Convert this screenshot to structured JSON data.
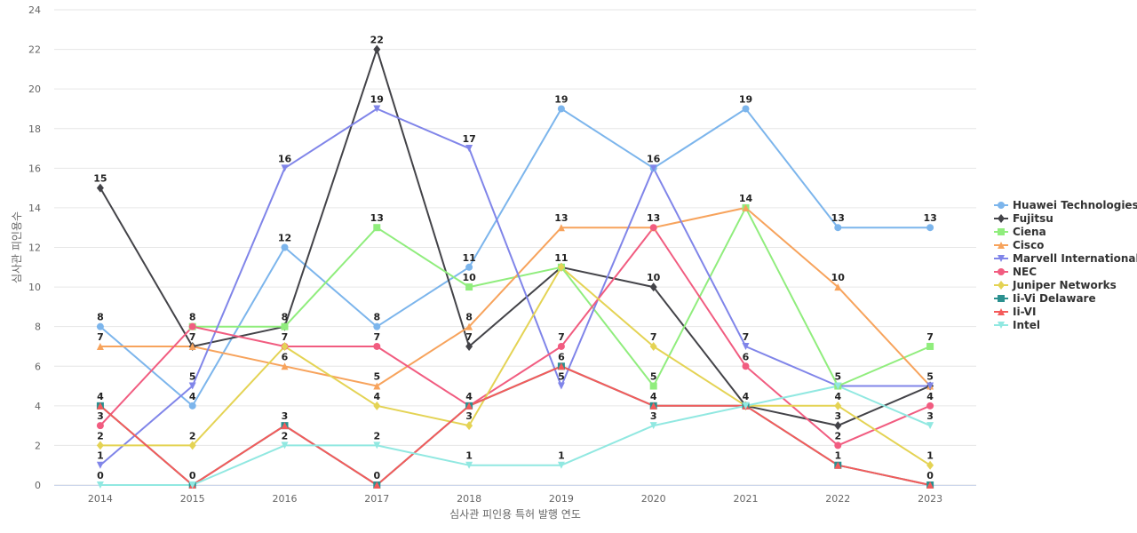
{
  "chart_data": {
    "type": "line",
    "title": "",
    "xlabel": "심사관 피인용 특허 발행 연도",
    "ylabel": "심사관 피인용수",
    "x": [
      "2014",
      "2015",
      "2016",
      "2017",
      "2018",
      "2019",
      "2020",
      "2021",
      "2022",
      "2023"
    ],
    "ylim": [
      0,
      24
    ],
    "yticks": [
      0,
      2,
      4,
      6,
      8,
      10,
      12,
      14,
      16,
      18,
      20,
      22,
      24
    ],
    "grid": true,
    "legend_position": "right",
    "series": [
      {
        "name": "Huawei Technologies",
        "color": "#7cb5ec",
        "marker": "circle",
        "values": [
          8,
          4,
          12,
          8,
          11,
          19,
          16,
          19,
          13,
          13
        ]
      },
      {
        "name": "Fujitsu",
        "color": "#434348",
        "marker": "diamond",
        "values": [
          15,
          7,
          8,
          22,
          7,
          11,
          10,
          4,
          3,
          5
        ]
      },
      {
        "name": "Ciena",
        "color": "#90ed7d",
        "marker": "square",
        "values": [
          null,
          8,
          8,
          13,
          10,
          11,
          5,
          14,
          5,
          7
        ]
      },
      {
        "name": "Cisco",
        "color": "#f7a35c",
        "marker": "triangle",
        "values": [
          7,
          7,
          6,
          5,
          8,
          13,
          13,
          14,
          10,
          5
        ]
      },
      {
        "name": "Marvell International",
        "color": "#8085e9",
        "marker": "triangle-down",
        "values": [
          1,
          5,
          16,
          19,
          17,
          5,
          16,
          7,
          5,
          5
        ]
      },
      {
        "name": "NEC",
        "color": "#f15c80",
        "marker": "circle",
        "values": [
          3,
          8,
          7,
          7,
          4,
          7,
          13,
          6,
          2,
          4
        ]
      },
      {
        "name": "Juniper Networks",
        "color": "#e4d354",
        "marker": "diamond",
        "values": [
          2,
          2,
          7,
          4,
          3,
          11,
          7,
          4,
          4,
          1
        ]
      },
      {
        "name": "Ii-Vi Delaware",
        "color": "#2b908f",
        "marker": "square",
        "values": [
          4,
          0,
          3,
          0,
          4,
          6,
          4,
          4,
          1,
          0
        ]
      },
      {
        "name": "Ii-VI",
        "color": "#f45b5b",
        "marker": "triangle",
        "values": [
          4,
          0,
          3,
          0,
          4,
          6,
          4,
          4,
          1,
          0
        ]
      },
      {
        "name": "Intel",
        "color": "#91e8e1",
        "marker": "triangle-down",
        "values": [
          0,
          0,
          2,
          2,
          1,
          1,
          3,
          4,
          5,
          3
        ]
      }
    ],
    "data_labels": [
      {
        "x": "2014",
        "value": 15
      },
      {
        "x": "2014",
        "value": 8
      },
      {
        "x": "2014",
        "value": 7
      },
      {
        "x": "2014",
        "value": 4
      },
      {
        "x": "2014",
        "value": 3
      },
      {
        "x": "2014",
        "value": 2
      },
      {
        "x": "2014",
        "value": 1
      },
      {
        "x": "2014",
        "value": 0
      },
      {
        "x": "2015",
        "value": 8
      },
      {
        "x": "2015",
        "value": 7
      },
      {
        "x": "2015",
        "value": 5
      },
      {
        "x": "2015",
        "value": 4
      },
      {
        "x": "2015",
        "value": 2
      },
      {
        "x": "2015",
        "value": 0
      },
      {
        "x": "2016",
        "value": 16
      },
      {
        "x": "2016",
        "value": 12
      },
      {
        "x": "2016",
        "value": 8
      },
      {
        "x": "2016",
        "value": 7
      },
      {
        "x": "2016",
        "value": 6
      },
      {
        "x": "2016",
        "value": 3
      },
      {
        "x": "2016",
        "value": 2
      },
      {
        "x": "2017",
        "value": 22
      },
      {
        "x": "2017",
        "value": 19
      },
      {
        "x": "2017",
        "value": 13
      },
      {
        "x": "2017",
        "value": 8
      },
      {
        "x": "2017",
        "value": 7
      },
      {
        "x": "2017",
        "value": 5
      },
      {
        "x": "2017",
        "value": 4
      },
      {
        "x": "2017",
        "value": 2
      },
      {
        "x": "2017",
        "value": 0
      },
      {
        "x": "2018",
        "value": 17
      },
      {
        "x": "2018",
        "value": 11
      },
      {
        "x": "2018",
        "value": 10
      },
      {
        "x": "2018",
        "value": 8
      },
      {
        "x": "2018",
        "value": 7
      },
      {
        "x": "2018",
        "value": 4
      },
      {
        "x": "2018",
        "value": 3
      },
      {
        "x": "2018",
        "value": 1
      },
      {
        "x": "2019",
        "value": 19
      },
      {
        "x": "2019",
        "value": 13
      },
      {
        "x": "2019",
        "value": 11
      },
      {
        "x": "2019",
        "value": 7
      },
      {
        "x": "2019",
        "value": 6
      },
      {
        "x": "2019",
        "value": 5
      },
      {
        "x": "2019",
        "value": 1
      },
      {
        "x": "2020",
        "value": 16
      },
      {
        "x": "2020",
        "value": 13
      },
      {
        "x": "2020",
        "value": 10
      },
      {
        "x": "2020",
        "value": 7
      },
      {
        "x": "2020",
        "value": 5
      },
      {
        "x": "2020",
        "value": 4
      },
      {
        "x": "2020",
        "value": 3
      },
      {
        "x": "2021",
        "value": 19
      },
      {
        "x": "2021",
        "value": 14
      },
      {
        "x": "2021",
        "value": 7
      },
      {
        "x": "2021",
        "value": 6
      },
      {
        "x": "2021",
        "value": 4
      },
      {
        "x": "2022",
        "value": 13
      },
      {
        "x": "2022",
        "value": 10
      },
      {
        "x": "2022",
        "value": 5
      },
      {
        "x": "2022",
        "value": 4
      },
      {
        "x": "2022",
        "value": 3
      },
      {
        "x": "2022",
        "value": 2
      },
      {
        "x": "2022",
        "value": 1
      },
      {
        "x": "2023",
        "value": 13
      },
      {
        "x": "2023",
        "value": 7
      },
      {
        "x": "2023",
        "value": 5
      },
      {
        "x": "2023",
        "value": 4
      },
      {
        "x": "2023",
        "value": 3
      },
      {
        "x": "2023",
        "value": 1
      },
      {
        "x": "2023",
        "value": 0
      }
    ]
  }
}
